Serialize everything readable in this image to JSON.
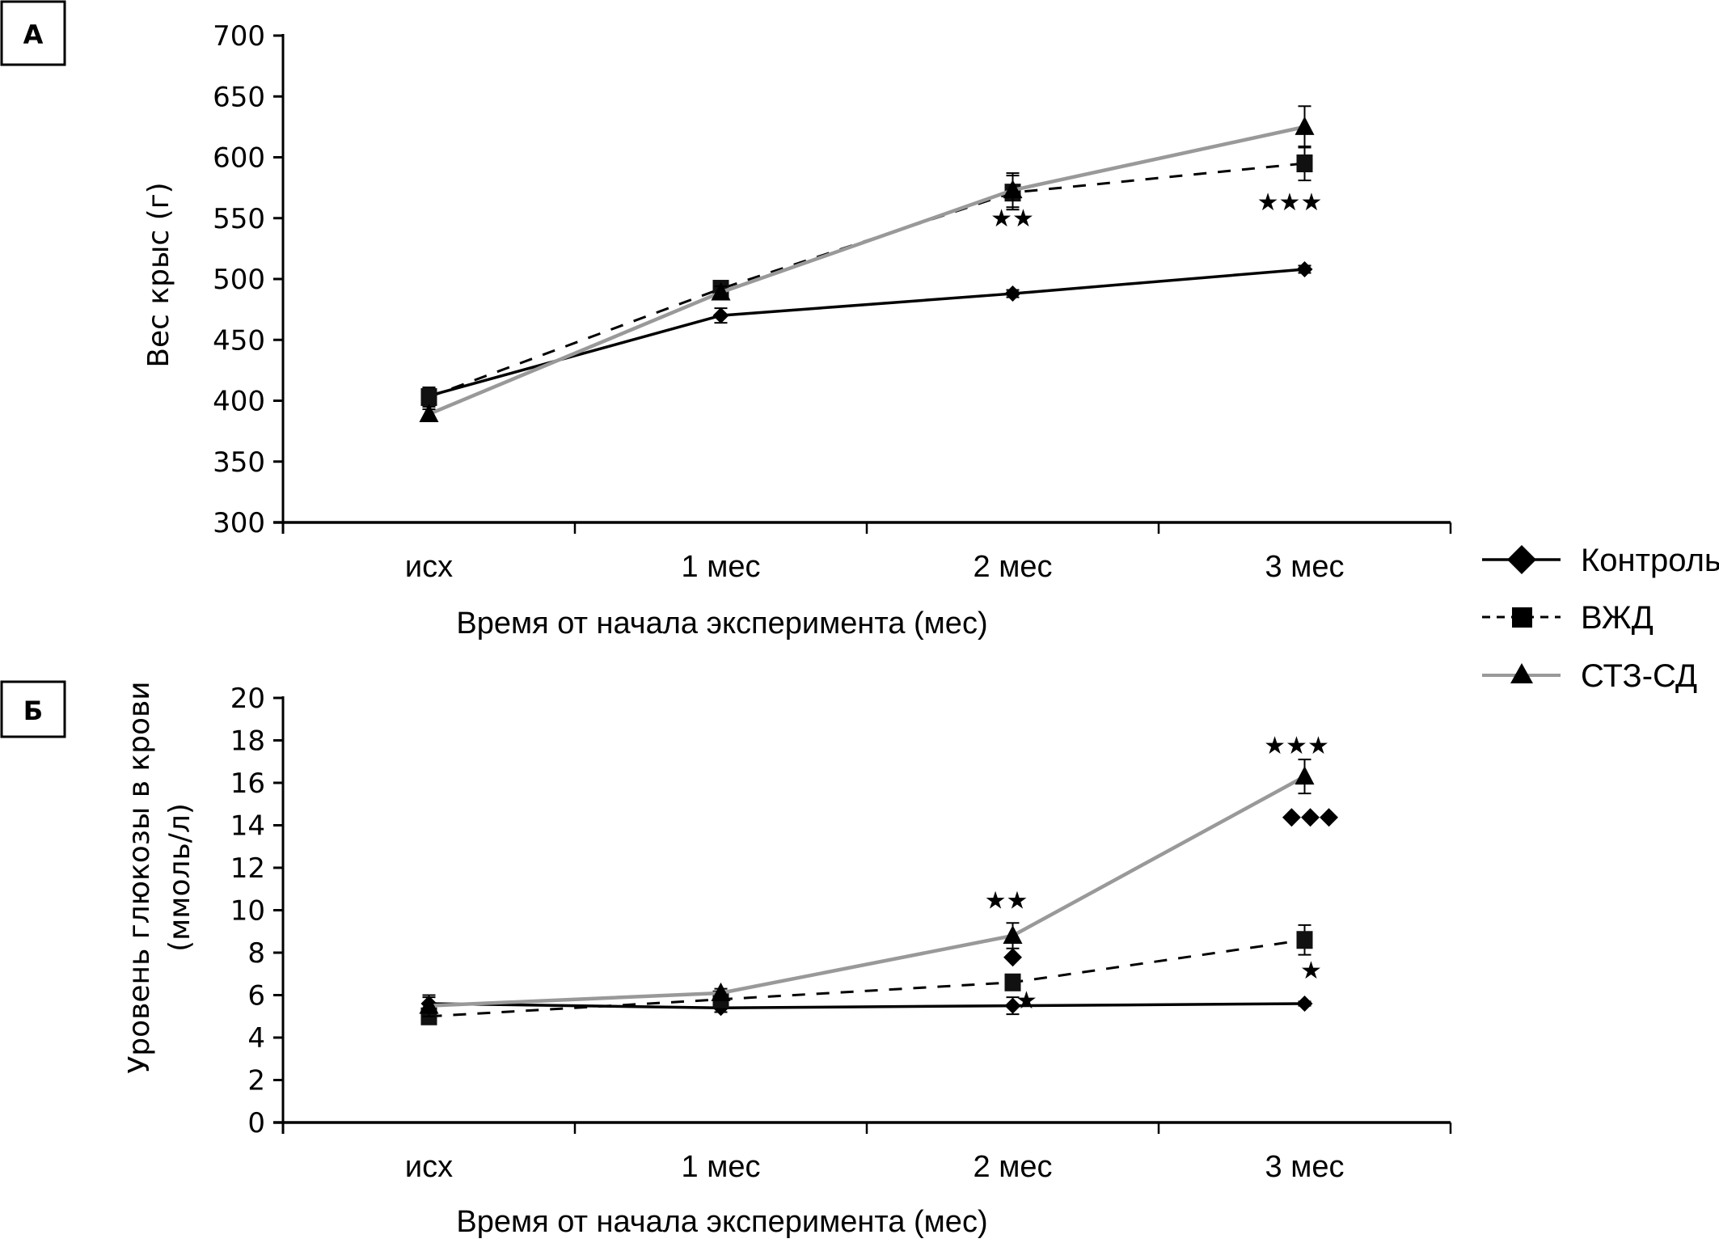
{
  "chart_data": [
    {
      "panel": "А",
      "type": "line",
      "title": "",
      "xlabel": "Время от начала эксперимента (мес)",
      "ylabel": "Вес крыс (г)",
      "categories": [
        "исх",
        "1 мес",
        "2 мес",
        "3 мес"
      ],
      "ylim": [
        300,
        700
      ],
      "yticks": [
        300,
        350,
        400,
        450,
        500,
        550,
        600,
        650,
        700
      ],
      "series": [
        {
          "name": "Контроль",
          "values": [
            404,
            470,
            488,
            508
          ],
          "errors": [
            6,
            6,
            3,
            3
          ]
        },
        {
          "name": "ВЖД",
          "values": [
            403,
            492,
            571,
            595
          ],
          "errors": [
            8,
            6,
            14,
            14
          ]
        },
        {
          "name": "СТЗ-СД",
          "values": [
            389,
            489,
            573,
            625
          ],
          "errors": [
            4,
            5,
            14,
            17
          ]
        }
      ],
      "annotations": [
        {
          "category": "2 мес",
          "text": "★★",
          "anchor": "below"
        },
        {
          "category": "3 мес",
          "text": "★★★",
          "anchor": "below"
        }
      ]
    },
    {
      "panel": "Б",
      "type": "line",
      "title": "",
      "xlabel": "Время от начала эксперимента (мес)",
      "ylabel": [
        "Уровень глюкозы в крови",
        "(ммоль/л)"
      ],
      "categories": [
        "исх",
        "1 мес",
        "2 мес",
        "3 мес"
      ],
      "ylim": [
        0,
        20
      ],
      "yticks": [
        0,
        2,
        4,
        6,
        8,
        10,
        12,
        14,
        16,
        18,
        20
      ],
      "series": [
        {
          "name": "Контроль",
          "values": [
            5.6,
            5.4,
            5.5,
            5.6
          ],
          "errors": [
            0.3,
            0.2,
            0.4,
            0.1
          ]
        },
        {
          "name": "ВЖД",
          "values": [
            5.0,
            5.8,
            6.6,
            8.6
          ],
          "errors": [
            0.2,
            0.2,
            0.2,
            0.7
          ]
        },
        {
          "name": "СТЗ-СД",
          "values": [
            5.5,
            6.1,
            8.8,
            16.3
          ],
          "errors": [
            0.5,
            0.2,
            0.6,
            0.8
          ]
        }
      ],
      "annotations": [
        {
          "category": "2 мес",
          "text": "★★",
          "value": 10.5
        },
        {
          "category": "2 мес",
          "text": "◆",
          "value": 7.9
        },
        {
          "category": "2 мес",
          "text": "★",
          "value": 5.8
        },
        {
          "category": "3 мес",
          "text": "★★★",
          "value": 17.8
        },
        {
          "category": "3 мес",
          "text": "◆◆◆",
          "value": 14.5
        },
        {
          "category": "3 мес",
          "text": "★",
          "value": 7.2
        }
      ]
    }
  ],
  "legend": {
    "position": "right",
    "items": [
      {
        "label": "Контроль",
        "marker": "diamond",
        "line": "solid",
        "color": "#000000"
      },
      {
        "label": "ВЖД",
        "marker": "square",
        "line": "dashed",
        "color": "#000000"
      },
      {
        "label": "СТЗ-СД",
        "marker": "triangle",
        "line": "solid",
        "color": "#999999"
      }
    ]
  }
}
